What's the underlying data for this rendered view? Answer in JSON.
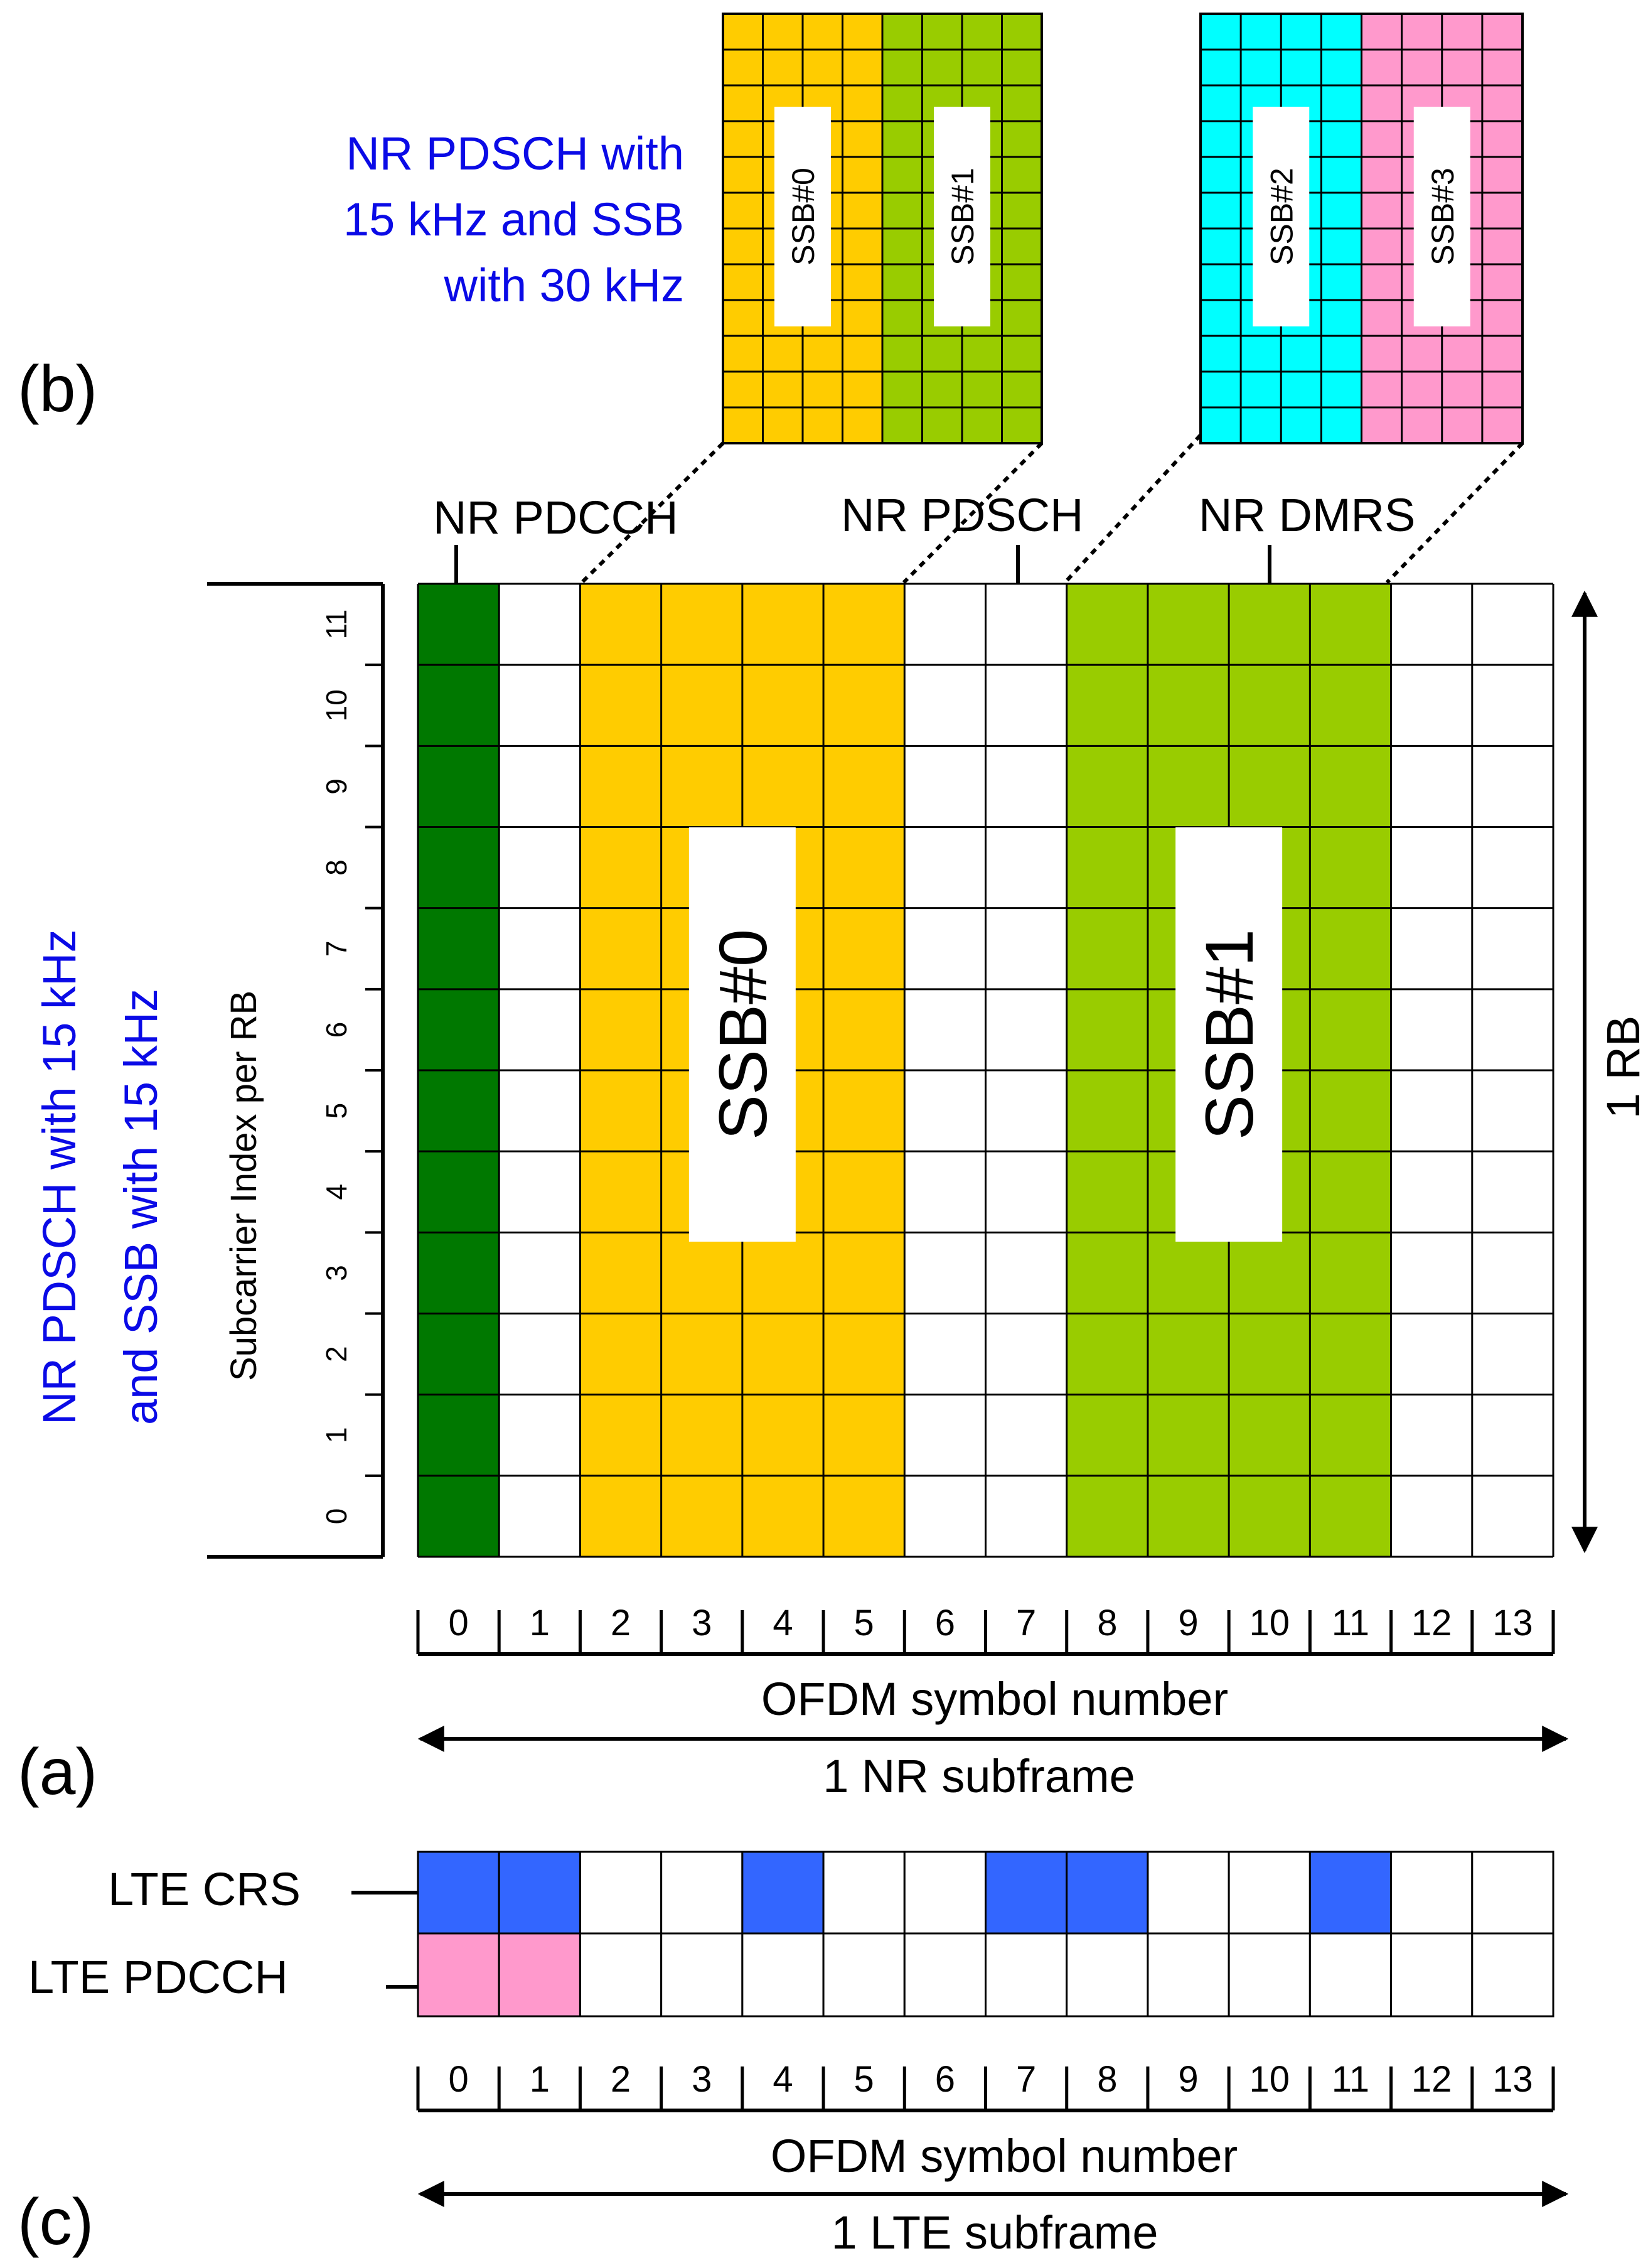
{
  "panel_labels": {
    "a": "(a)",
    "b": "(b)",
    "c": "(c)"
  },
  "colors": {
    "pdcch_green": "#007800",
    "ssb0_orange": "#FFCC00",
    "ssb1_green": "#99CC00",
    "ssb2_cyan": "#00FFFF",
    "ssb3_pink": "#FF99CC",
    "lte_crs_blue": "#3366FF",
    "lte_pdcch_pink": "#FF99CC",
    "title_blue": "#0A0AE6"
  },
  "panel_b": {
    "title_lines": [
      "NR PDSCH with",
      "15 kHz and SSB",
      "with 30 kHz"
    ],
    "ssb_labels": [
      "SSB#0",
      "SSB#1",
      "SSB#2",
      "SSB#3"
    ]
  },
  "panel_a": {
    "side_title_lines": [
      "NR PDSCH with 15 kHz",
      "and SSB with 15 kHz"
    ],
    "y_axis_label": "Subcarrier Index per RB",
    "subcarrier_indices": [
      "0",
      "1",
      "2",
      "3",
      "4",
      "5",
      "6",
      "7",
      "8",
      "9",
      "10",
      "11"
    ],
    "x_ticks": [
      "0",
      "1",
      "2",
      "3",
      "4",
      "5",
      "6",
      "7",
      "8",
      "9",
      "10",
      "11",
      "12",
      "13"
    ],
    "x_axis_label": "OFDM symbol number",
    "span_label": "1 NR subframe",
    "rb_label": "1 RB",
    "callouts": {
      "pdcch": "NR PDCCH",
      "pdsch": "NR PDSCH",
      "dmrs": "NR DMRS"
    },
    "ssb_labels": [
      "SSB#0",
      "SSB#1"
    ],
    "symbol_assignment": [
      "NR PDCCH",
      "NR PDSCH",
      "SSB#0",
      "SSB#0",
      "SSB#0",
      "SSB#0",
      "NR PDSCH",
      "NR PDSCH",
      "SSB#1",
      "SSB#1",
      "SSB#1",
      "SSB#1",
      "NR PDSCH",
      "NR PDSCH"
    ]
  },
  "panel_c": {
    "crs_label": "LTE CRS",
    "pdcch_label": "LTE PDCCH",
    "crs_symbols": [
      0,
      1,
      4,
      7,
      8,
      11
    ],
    "pdcch_symbols": [
      0,
      1
    ],
    "x_ticks": [
      "0",
      "1",
      "2",
      "3",
      "4",
      "5",
      "6",
      "7",
      "8",
      "9",
      "10",
      "11",
      "12",
      "13"
    ],
    "x_axis_label": "OFDM symbol number",
    "span_label": "1 LTE subframe"
  }
}
